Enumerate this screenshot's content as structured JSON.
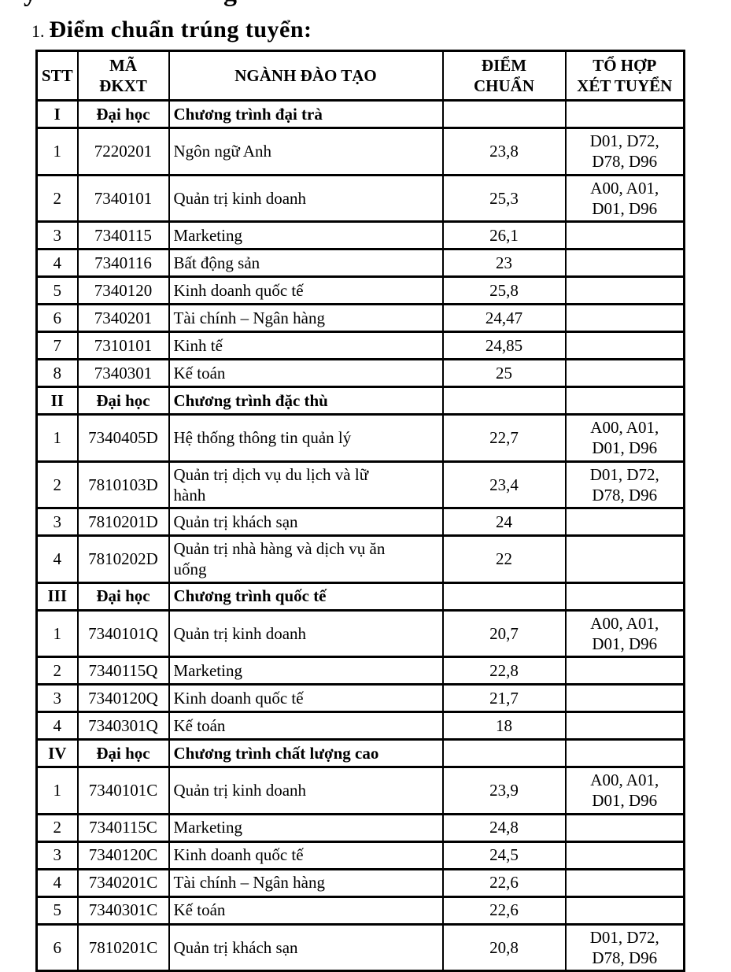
{
  "artifacts": {
    "top_left_fragment": "y",
    "top_right_fragment": "g"
  },
  "title": {
    "number": "1.",
    "text": "Điểm chuẩn trúng tuyển:"
  },
  "colors": {
    "text": "#000000",
    "border": "#000000",
    "background": "#ffffff"
  },
  "table": {
    "headers": {
      "stt": "STT",
      "ma": "MÃ\nĐKXT",
      "nganh": "NGÀNH ĐÀO TẠO",
      "diem": "ĐIỂM\nCHUẨN",
      "tohop": "TỔ HỢP\nXÉT TUYỂN"
    },
    "rows": [
      {
        "type": "section",
        "stt": "I",
        "ma": "Đại học",
        "nganh": "Chương trình đại trà",
        "diem": "",
        "tohop": ""
      },
      {
        "type": "item",
        "stt": "1",
        "ma": "7220201",
        "nganh": "Ngôn ngữ Anh",
        "diem": "23,8",
        "tohop": "D01, D72,\nD78, D96"
      },
      {
        "type": "item",
        "stt": "2",
        "ma": "7340101",
        "nganh": "Quản trị kinh doanh",
        "diem": "25,3",
        "tohop": "A00, A01,\nD01, D96"
      },
      {
        "type": "item",
        "stt": "3",
        "ma": "7340115",
        "nganh": "Marketing",
        "diem": "26,1",
        "tohop": ""
      },
      {
        "type": "item",
        "stt": "4",
        "ma": "7340116",
        "nganh": "Bất động sản",
        "diem": "23",
        "tohop": ""
      },
      {
        "type": "item",
        "stt": "5",
        "ma": "7340120",
        "nganh": "Kinh doanh quốc tế",
        "diem": "25,8",
        "tohop": ""
      },
      {
        "type": "item",
        "stt": "6",
        "ma": "7340201",
        "nganh": "Tài chính – Ngân hàng",
        "diem": "24,47",
        "tohop": ""
      },
      {
        "type": "item",
        "stt": "7",
        "ma": "7310101",
        "nganh": "Kinh tế",
        "diem": "24,85",
        "tohop": ""
      },
      {
        "type": "item",
        "stt": "8",
        "ma": "7340301",
        "nganh": "Kế toán",
        "diem": "25",
        "tohop": ""
      },
      {
        "type": "section",
        "stt": "II",
        "ma": "Đại học",
        "nganh": "Chương trình đặc thù",
        "diem": "",
        "tohop": ""
      },
      {
        "type": "item",
        "stt": "1",
        "ma": "7340405D",
        "nganh": "Hệ thống thông tin quản lý",
        "diem": "22,7",
        "tohop": "A00, A01,\nD01, D96"
      },
      {
        "type": "item",
        "stt": "2",
        "ma": "7810103D",
        "nganh": "Quản trị dịch vụ du lịch và lữ\nhành",
        "diem": "23,4",
        "tohop": "D01, D72,\nD78, D96"
      },
      {
        "type": "item",
        "stt": "3",
        "ma": "7810201D",
        "nganh": "Quản trị khách sạn",
        "diem": "24",
        "tohop": ""
      },
      {
        "type": "item",
        "stt": "4",
        "ma": "7810202D",
        "nganh": "Quản trị nhà hàng và dịch vụ ăn\nuống",
        "diem": "22",
        "tohop": ""
      },
      {
        "type": "section",
        "stt": "III",
        "ma": "Đại học",
        "nganh": "Chương trình quốc tế",
        "diem": "",
        "tohop": ""
      },
      {
        "type": "item",
        "stt": "1",
        "ma": "7340101Q",
        "nganh": "Quản trị kinh doanh",
        "diem": "20,7",
        "tohop": "A00, A01,\nD01, D96"
      },
      {
        "type": "item",
        "stt": "2",
        "ma": "7340115Q",
        "nganh": "Marketing",
        "diem": "22,8",
        "tohop": ""
      },
      {
        "type": "item",
        "stt": "3",
        "ma": "7340120Q",
        "nganh": "Kinh doanh quốc tế",
        "diem": "21,7",
        "tohop": ""
      },
      {
        "type": "item",
        "stt": "4",
        "ma": "7340301Q",
        "nganh": "Kế toán",
        "diem": "18",
        "tohop": ""
      },
      {
        "type": "section",
        "stt": "IV",
        "ma": "Đại học",
        "nganh": "Chương trình chất lượng cao",
        "diem": "",
        "tohop": ""
      },
      {
        "type": "item",
        "stt": "1",
        "ma": "7340101C",
        "nganh": "Quản trị kinh doanh",
        "diem": "23,9",
        "tohop": "A00, A01,\nD01, D96"
      },
      {
        "type": "item",
        "stt": "2",
        "ma": "7340115C",
        "nganh": "Marketing",
        "diem": "24,8",
        "tohop": ""
      },
      {
        "type": "item",
        "stt": "3",
        "ma": "7340120C",
        "nganh": "Kinh doanh quốc tế",
        "diem": "24,5",
        "tohop": ""
      },
      {
        "type": "item",
        "stt": "4",
        "ma": "7340201C",
        "nganh": "Tài chính – Ngân hàng",
        "diem": "22,6",
        "tohop": ""
      },
      {
        "type": "item",
        "stt": "5",
        "ma": "7340301C",
        "nganh": "Kế toán",
        "diem": "22,6",
        "tohop": ""
      },
      {
        "type": "item",
        "stt": "6",
        "ma": "7810201C",
        "nganh": "Quản trị khách sạn",
        "diem": "20,8",
        "tohop": "D01, D72,\nD78, D96"
      }
    ]
  }
}
